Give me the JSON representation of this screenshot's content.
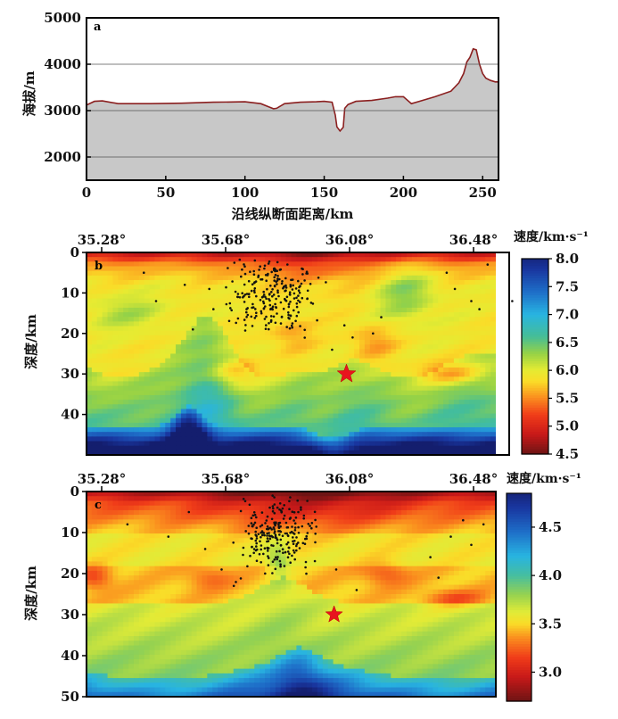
{
  "chart_data": [
    {
      "type": "area",
      "panel_label": "a",
      "xlabel": "沿线纵断面距离/km",
      "ylabel": "海拔/m",
      "xlim": [
        0,
        260
      ],
      "ylim": [
        1500,
        5000
      ],
      "xticks": [
        "0",
        "50",
        "100",
        "150",
        "200",
        "250"
      ],
      "yticks": [
        "2000",
        "3000",
        "4000",
        "5000"
      ],
      "grid": "horizontal lines at 2000, 3000, 4000",
      "fill_color": "#c8c8c8",
      "line_color": "#8b2020",
      "x": [
        0,
        5,
        10,
        20,
        40,
        60,
        80,
        100,
        110,
        115,
        118,
        120,
        125,
        135,
        145,
        150,
        155,
        157,
        158,
        160,
        162,
        163,
        165,
        170,
        180,
        190,
        195,
        200,
        205,
        210,
        220,
        230,
        235,
        238,
        240,
        242,
        244,
        246,
        248,
        250,
        252,
        255,
        258,
        260
      ],
      "y": [
        3120,
        3200,
        3210,
        3150,
        3150,
        3160,
        3180,
        3190,
        3150,
        3080,
        3040,
        3050,
        3150,
        3180,
        3190,
        3200,
        3180,
        2900,
        2650,
        2560,
        2640,
        3050,
        3130,
        3200,
        3220,
        3270,
        3300,
        3300,
        3150,
        3200,
        3300,
        3420,
        3600,
        3800,
        4050,
        4150,
        4330,
        4310,
        4000,
        3800,
        3700,
        3650,
        3620,
        3620
      ]
    },
    {
      "type": "heatmap",
      "panel_label": "b",
      "ylabel": "深度/km",
      "xticks": [
        "35.28°",
        "35.68°",
        "36.08°",
        "36.48°"
      ],
      "yticks": [
        "0",
        "10",
        "20",
        "30",
        "40"
      ],
      "ylim": [
        0,
        50
      ],
      "colorbar_title": "速度/km·s⁻¹",
      "colorbar_ticks": [
        "4.5",
        "5.0",
        "5.5",
        "6.0",
        "6.5",
        "7.0",
        "7.5",
        "8.0"
      ],
      "colorbar_range": [
        4.5,
        8.0
      ],
      "star": {
        "lon": 36.07,
        "depth": 30
      },
      "value_grid_note": "P-wave velocity; low (red) near surface, ~6.0 mid crust, >7.5 below ~45 km"
    },
    {
      "type": "heatmap",
      "panel_label": "c",
      "ylabel": "深度/km",
      "xticks": [
        "35.28°",
        "35.68°",
        "36.08°",
        "36.48°"
      ],
      "yticks": [
        "0",
        "10",
        "20",
        "30",
        "40",
        "50"
      ],
      "ylim": [
        0,
        50
      ],
      "colorbar_title": "速度/km·s⁻¹",
      "colorbar_ticks": [
        "3.0",
        "3.5",
        "4.0",
        "4.5"
      ],
      "colorbar_range": [
        2.7,
        4.85
      ],
      "star": {
        "lon": 36.03,
        "depth": 30
      },
      "value_grid_note": "S-wave velocity; low (red) near surface, ~3.5 mid crust, >4.3 below ~45 km"
    }
  ]
}
